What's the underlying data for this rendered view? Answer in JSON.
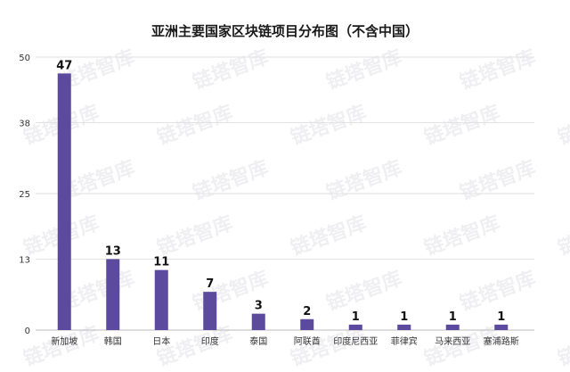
{
  "chart_data": {
    "type": "bar",
    "title": "亚洲主要国家区块链项目分布图（不含中国）",
    "categories": [
      "新加坡",
      "韩国",
      "日本",
      "印度",
      "泰国",
      "阿联酋",
      "印度尼西亚",
      "菲律宾",
      "马来西亚",
      "塞浦路斯"
    ],
    "values": [
      47,
      13,
      11,
      7,
      3,
      2,
      1,
      1,
      1,
      1
    ],
    "yticks": [
      "0",
      "13",
      "25",
      "38",
      "50"
    ],
    "ylim": [
      0,
      50
    ],
    "grid": true,
    "bar_color": "#5b4a9e",
    "watermark_text": "链塔智库"
  }
}
